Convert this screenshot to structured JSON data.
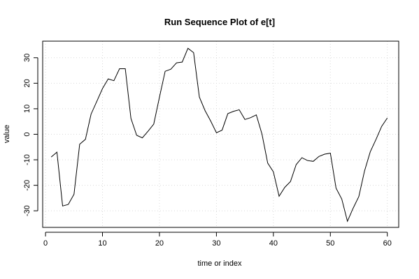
{
  "chart_data": {
    "type": "line",
    "title": "Run Sequence Plot of e[t]",
    "xlabel": "time or index",
    "ylabel": "value",
    "xlim": [
      -0.5,
      62
    ],
    "ylim": [
      -36.5,
      36.5
    ],
    "xticks": [
      0,
      10,
      20,
      30,
      40,
      50,
      60
    ],
    "yticks": [
      -30,
      -20,
      -10,
      0,
      10,
      20,
      30
    ],
    "grid": true,
    "colors": {
      "line": "#000000",
      "grid": "#d9d9d9",
      "frame": "#000000"
    },
    "series": [
      {
        "x": [
          1,
          2,
          3,
          4,
          5,
          6,
          7,
          8,
          9,
          10,
          11,
          12,
          13,
          14,
          15,
          16,
          17,
          18,
          19,
          20,
          21,
          22,
          23,
          24,
          25,
          26,
          27,
          28,
          29,
          30,
          31,
          32,
          33,
          34,
          35,
          36,
          37,
          38,
          39,
          40,
          41,
          42,
          43,
          44,
          45,
          46,
          47,
          48,
          49,
          50,
          51,
          52,
          53,
          54,
          55,
          56,
          57,
          58,
          59,
          60
        ],
        "values": [
          -8.9,
          -7.0,
          -28.1,
          -27.5,
          -23.5,
          -3.9,
          -2.0,
          7.9,
          12.9,
          17.9,
          21.7,
          21.0,
          25.7,
          25.7,
          6.2,
          -0.4,
          -1.4,
          1.2,
          4.0,
          14.6,
          24.7,
          25.5,
          28.0,
          28.3,
          33.7,
          32.0,
          14.6,
          9.3,
          5.2,
          0.6,
          1.6,
          8.1,
          9.0,
          9.6,
          5.8,
          6.5,
          7.6,
          0.1,
          -11.3,
          -14.7,
          -24.3,
          -20.8,
          -18.5,
          -11.9,
          -9.2,
          -10.3,
          -10.6,
          -8.7,
          -7.8,
          -7.4,
          -21.1,
          -25.4,
          -34.1,
          -29.0,
          -24.4,
          -14.4,
          -6.9,
          -2.1,
          3.1,
          6.4
        ]
      }
    ]
  }
}
